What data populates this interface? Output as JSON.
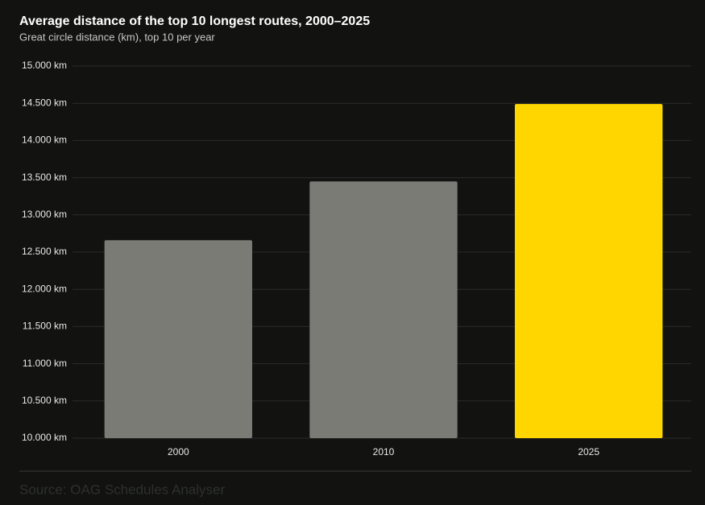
{
  "chart_data": {
    "type": "bar",
    "title": "Average distance of the top 10 longest routes, 2000–2025",
    "subtitle": "Great circle distance (km), top 10 per year",
    "categories": [
      "2000",
      "2010",
      "2025"
    ],
    "values": [
      12660,
      13450,
      14490
    ],
    "colors": [
      "#7b7b76",
      "#7b7b76",
      "#ffd600"
    ],
    "ylim": [
      10000,
      15000
    ],
    "yticks": [
      {
        "value": 10000,
        "label": "10.000 km"
      },
      {
        "value": 10500,
        "label": "10.500 km"
      },
      {
        "value": 11000,
        "label": "11.000 km"
      },
      {
        "value": 11500,
        "label": "11.500 km"
      },
      {
        "value": 12000,
        "label": "12.000 km"
      },
      {
        "value": 12500,
        "label": "12.500 km"
      },
      {
        "value": 13000,
        "label": "13.000 km"
      },
      {
        "value": 13500,
        "label": "13.500 km"
      },
      {
        "value": 14000,
        "label": "14.000 km"
      },
      {
        "value": 14500,
        "label": "14.500 km"
      },
      {
        "value": 15000,
        "label": "15.000 km"
      }
    ],
    "grid": true,
    "source": "Source: OAG Schedules Analyser"
  }
}
